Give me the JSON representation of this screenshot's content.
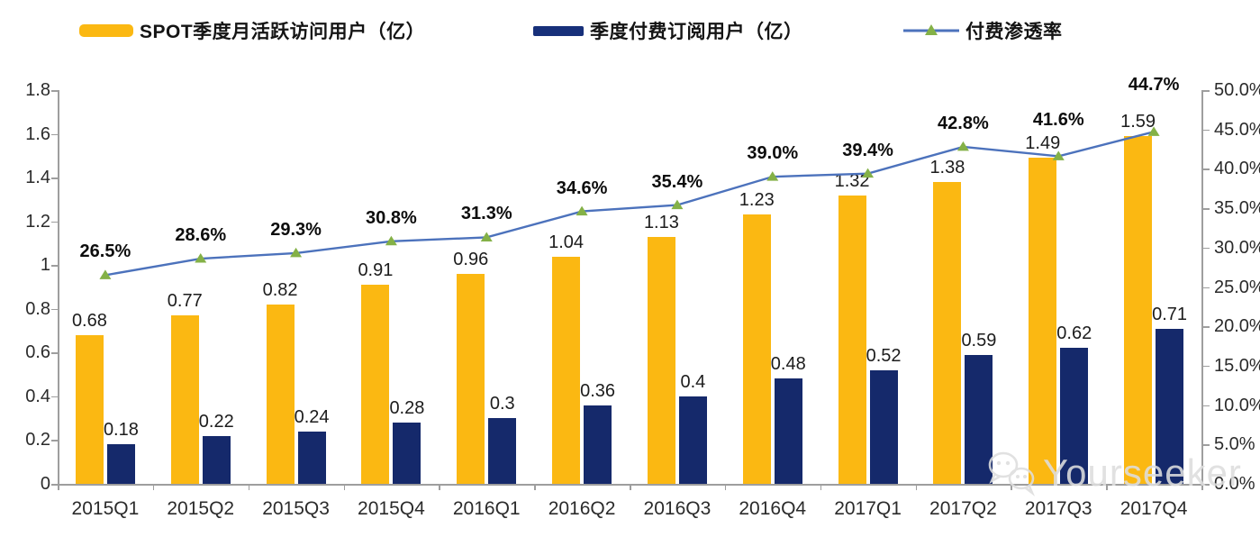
{
  "legend": {
    "items": [
      {
        "label": "SPOT季度月活跃访问用户（亿）",
        "swatch": "bar",
        "color": "#FBB812"
      },
      {
        "label": "季度付费订阅用户（亿）",
        "swatch": "bar",
        "color": "#17307A"
      },
      {
        "label": "付费渗透率",
        "swatch": "line",
        "color": "#4C72BC",
        "marker_color": "#84B147"
      }
    ]
  },
  "chart_data": {
    "type": "bar+line",
    "categories": [
      "2015Q1",
      "2015Q2",
      "2015Q3",
      "2015Q4",
      "2016Q1",
      "2016Q2",
      "2016Q3",
      "2016Q4",
      "2017Q1",
      "2017Q2",
      "2017Q3",
      "2017Q4"
    ],
    "series": [
      {
        "name": "SPOT季度月活跃访问用户（亿）",
        "type": "bar",
        "axis": "left",
        "color": "#FBB812",
        "values": [
          0.68,
          0.77,
          0.82,
          0.91,
          0.96,
          1.04,
          1.13,
          1.23,
          1.32,
          1.38,
          1.49,
          1.59
        ],
        "labels": [
          "0.68",
          "0.77",
          "0.82",
          "0.91",
          "0.96",
          "1.04",
          "1.13",
          "1.23",
          "1.32",
          "1.38",
          "1.49",
          "1.59"
        ]
      },
      {
        "name": "季度付费订阅用户（亿）",
        "type": "bar",
        "axis": "left",
        "color": "#15296B",
        "values": [
          0.18,
          0.22,
          0.24,
          0.28,
          0.3,
          0.36,
          0.4,
          0.48,
          0.52,
          0.59,
          0.62,
          0.71
        ],
        "labels": [
          "0.18",
          "0.22",
          "0.24",
          "0.28",
          "0.3",
          "0.36",
          "0.4",
          "0.48",
          "0.52",
          "0.59",
          "0.62",
          "0.71"
        ]
      },
      {
        "name": "付费渗透率",
        "type": "line",
        "axis": "right",
        "color": "#4C72BC",
        "marker": "triangle",
        "marker_color": "#84B147",
        "values": [
          26.5,
          28.6,
          29.3,
          30.8,
          31.3,
          34.6,
          35.4,
          39.0,
          39.4,
          42.8,
          41.6,
          44.7
        ],
        "labels": [
          "26.5%",
          "28.6%",
          "29.3%",
          "30.8%",
          "31.3%",
          "34.6%",
          "35.4%",
          "39.0%",
          "39.4%",
          "42.8%",
          "41.6%",
          "44.7%"
        ]
      }
    ],
    "left_axis": {
      "min": 0,
      "max": 1.8,
      "tick_labels": [
        "0",
        "0.2",
        "0.4",
        "0.6",
        "0.8",
        "1",
        "1.2",
        "1.4",
        "1.6",
        "1.8"
      ]
    },
    "right_axis": {
      "min": 0,
      "max": 50,
      "tick_labels": [
        "0.0%",
        "5.0%",
        "10.0%",
        "15.0%",
        "20.0%",
        "25.0%",
        "30.0%",
        "35.0%",
        "40.0%",
        "45.0%",
        "50.0%"
      ]
    },
    "grid": false,
    "legend_position": "top"
  },
  "watermark": {
    "text": "Yourseeker",
    "icon": "wechat-icon"
  }
}
